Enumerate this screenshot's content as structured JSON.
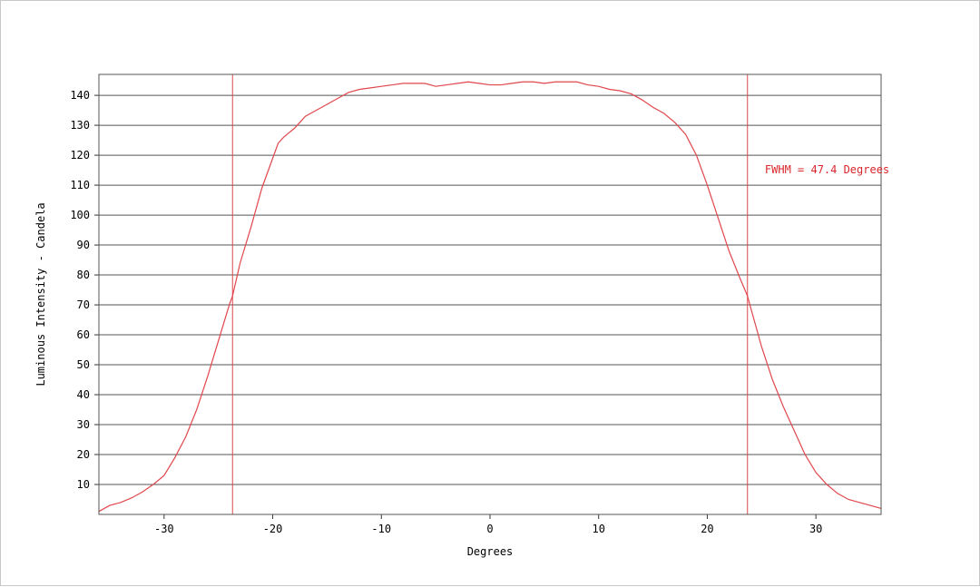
{
  "chart_data": {
    "type": "line",
    "title": "",
    "xlabel": "Degrees",
    "ylabel": "Luminous Intensity - Candela",
    "xlim": [
      -36,
      36
    ],
    "ylim": [
      0,
      147
    ],
    "xticks": [
      -30,
      -20,
      -10,
      0,
      10,
      20,
      30
    ],
    "xtick_labels": [
      "-30",
      "-20",
      "-10",
      "0",
      "10",
      "20",
      "30"
    ],
    "yticks": [
      10,
      20,
      30,
      40,
      50,
      60,
      70,
      80,
      90,
      100,
      110,
      120,
      130,
      140
    ],
    "ytick_labels": [
      "10",
      "20",
      "30",
      "40",
      "50",
      "60",
      "70",
      "80",
      "90",
      "100",
      "110",
      "120",
      "130",
      "140"
    ],
    "grid": "horizontal",
    "legend": "none",
    "line_color": "#e0474c",
    "series": [
      {
        "x": [
          -36,
          -35,
          -34,
          -33,
          -32,
          -31,
          -30,
          -29,
          -28,
          -27,
          -26,
          -25,
          -24,
          -23.7,
          -23,
          -22,
          -21,
          -20,
          -19.5,
          -19,
          -18.5,
          -18,
          -17,
          -16,
          -15,
          -14,
          -13,
          -12,
          -11,
          -10,
          -9,
          -8,
          -7,
          -6,
          -5,
          -4,
          -3,
          -2,
          -1,
          0,
          1,
          2,
          3,
          4,
          5,
          6,
          7,
          8,
          9,
          10,
          11,
          12,
          13,
          14,
          15,
          16,
          17,
          18,
          19,
          20,
          21,
          22,
          23,
          23.7,
          24,
          25,
          26,
          27,
          28,
          29,
          30,
          31,
          32,
          33,
          34,
          35,
          36
        ],
        "y": [
          1,
          3,
          4,
          5.5,
          7.5,
          10,
          13,
          19,
          26,
          35,
          46,
          58,
          70,
          73,
          84,
          96,
          109,
          119,
          124,
          126,
          127.5,
          129,
          133,
          135,
          137,
          139,
          141,
          142,
          142.5,
          143,
          143.5,
          144,
          144,
          144,
          143,
          143.5,
          144,
          144.5,
          144,
          143.5,
          143.5,
          144,
          144.5,
          144.5,
          144,
          144.5,
          144.5,
          144.5,
          143.5,
          143,
          142,
          141.5,
          140.5,
          138.5,
          136,
          134,
          131,
          127,
          120,
          110,
          99,
          88,
          79,
          73,
          69,
          56,
          45,
          36,
          28,
          20,
          14,
          10,
          7,
          5,
          4,
          3,
          2
        ]
      }
    ],
    "vlines": [
      -23.7,
      23.7
    ],
    "annotation": {
      "text": "FWHM = 47.4 Degrees",
      "x": 25.3,
      "y": 114
    }
  }
}
